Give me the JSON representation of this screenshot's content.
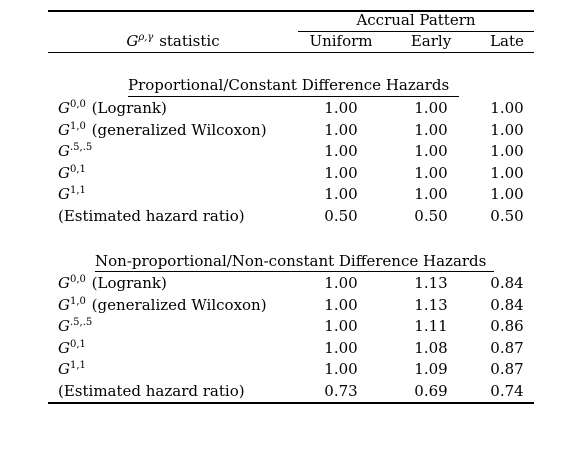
{
  "table": {
    "header": {
      "stat_col": "statistic",
      "stat_symbol": "G",
      "stat_superscript": "ρ,γ",
      "group_label": "Accrual Pattern",
      "columns": [
        "Uniform",
        "Early",
        "Late"
      ]
    },
    "sections": [
      {
        "title": "Proportional/Constant Difference Hazards",
        "rows": [
          {
            "sym": "G",
            "sup": "0,0",
            "label": " (Logrank)",
            "values": [
              "1.00",
              "1.00",
              "1.00"
            ]
          },
          {
            "sym": "G",
            "sup": "1,0",
            "label": " (generalized Wilcoxon)",
            "values": [
              "1.00",
              "1.00",
              "1.00"
            ]
          },
          {
            "sym": "G",
            "sup": ".5,.5",
            "label": "",
            "values": [
              "1.00",
              "1.00",
              "1.00"
            ]
          },
          {
            "sym": "G",
            "sup": "0,1",
            "label": "",
            "values": [
              "1.00",
              "1.00",
              "1.00"
            ]
          },
          {
            "sym": "G",
            "sup": "1,1",
            "label": "",
            "values": [
              "1.00",
              "1.00",
              "1.00"
            ]
          },
          {
            "sym": "",
            "sup": "",
            "label": "(Estimated hazard ratio)",
            "values": [
              "0.50",
              "0.50",
              "0.50"
            ]
          }
        ]
      },
      {
        "title": "Non-proportional/Non-constant Difference Hazards",
        "rows": [
          {
            "sym": "G",
            "sup": "0,0",
            "label": " (Logrank)",
            "values": [
              "1.00",
              "1.13",
              "0.84"
            ]
          },
          {
            "sym": "G",
            "sup": "1,0",
            "label": " (generalized Wilcoxon)",
            "values": [
              "1.00",
              "1.13",
              "0.84"
            ]
          },
          {
            "sym": "G",
            "sup": ".5,.5",
            "label": "",
            "values": [
              "1.00",
              "1.11",
              "0.86"
            ]
          },
          {
            "sym": "G",
            "sup": "0,1",
            "label": "",
            "values": [
              "1.00",
              "1.08",
              "0.87"
            ]
          },
          {
            "sym": "G",
            "sup": "1,1",
            "label": "",
            "values": [
              "1.00",
              "1.09",
              "0.87"
            ]
          },
          {
            "sym": "",
            "sup": "",
            "label": "(Estimated hazard ratio)",
            "values": [
              "0.73",
              "0.69",
              "0.74"
            ]
          }
        ]
      }
    ]
  }
}
